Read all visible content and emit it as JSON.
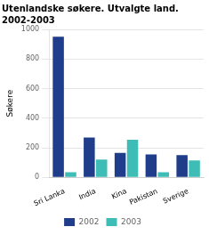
{
  "chart_data": {
    "type": "bar",
    "title": "Utenlandske søkere. Utvalgte land.",
    "subtitle": "2002-2003",
    "ylabel": "Søkere",
    "categories": [
      "Sri Lanka",
      "India",
      "Kina",
      "Pakistan",
      "Sverige"
    ],
    "series": [
      {
        "name": "2002",
        "color": "#1f3d8a",
        "values": [
          950,
          270,
          165,
          155,
          150
        ]
      },
      {
        "name": "2003",
        "color": "#3dbdb5",
        "values": [
          35,
          120,
          255,
          35,
          115
        ]
      }
    ],
    "ylim": [
      0,
      1000
    ],
    "yticks": [
      0,
      200,
      400,
      600,
      800,
      1000
    ],
    "grid": true,
    "legend": "bottom"
  }
}
